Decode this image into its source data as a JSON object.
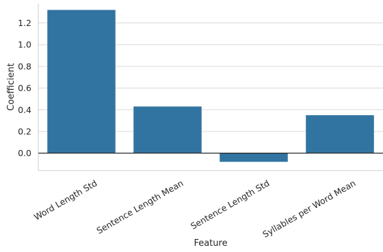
{
  "chart_data": {
    "type": "bar",
    "categories": [
      "Word Length Std",
      "Sentence Length Mean",
      "Sentence Length Std",
      "Syllables per Word Mean"
    ],
    "values": [
      1.32,
      0.43,
      -0.08,
      0.35
    ],
    "xlabel": "Feature",
    "ylabel": "Coefficient",
    "ylim": [
      -0.16,
      1.38
    ],
    "yticks": [
      0.0,
      0.2,
      0.4,
      0.6,
      0.8,
      1.0,
      1.2
    ],
    "ytick_labels": [
      "0.0",
      "0.2",
      "0.4",
      "0.6",
      "0.8",
      "1.0",
      "1.2"
    ],
    "grid": "horizontal",
    "zero_line": true,
    "bar_color": "#3274a1",
    "grid_color": "#d9d9d9",
    "axis_color": "#cccccc",
    "zero_line_color": "#262626",
    "background": "#ffffff"
  }
}
